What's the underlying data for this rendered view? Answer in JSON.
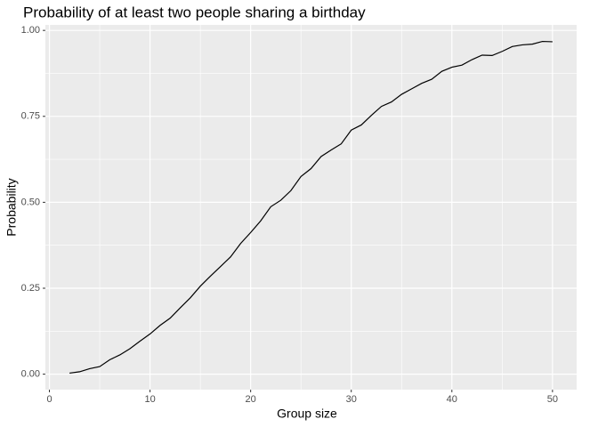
{
  "chart_data": {
    "type": "line",
    "title": "Probability of at least two people sharing a birthday",
    "x_label": "Group size",
    "y_label": "Probability",
    "x": [
      2,
      3,
      4,
      5,
      6,
      7,
      8,
      9,
      10,
      11,
      12,
      13,
      14,
      15,
      16,
      17,
      18,
      19,
      20,
      21,
      22,
      23,
      24,
      25,
      26,
      27,
      28,
      29,
      30,
      31,
      32,
      33,
      34,
      35,
      36,
      37,
      38,
      39,
      40,
      41,
      42,
      43,
      44,
      45,
      46,
      47,
      48,
      49,
      50
    ],
    "series": [
      {
        "color": "#000000",
        "values": [
          0.003,
          0.007,
          0.016,
          0.022,
          0.042,
          0.056,
          0.074,
          0.096,
          0.117,
          0.142,
          0.163,
          0.193,
          0.222,
          0.256,
          0.285,
          0.313,
          0.341,
          0.38,
          0.412,
          0.446,
          0.487,
          0.506,
          0.534,
          0.575,
          0.598,
          0.633,
          0.652,
          0.67,
          0.71,
          0.725,
          0.753,
          0.779,
          0.792,
          0.814,
          0.83,
          0.846,
          0.858,
          0.881,
          0.893,
          0.899,
          0.915,
          0.928,
          0.927,
          0.939,
          0.953,
          0.958,
          0.96,
          0.968,
          0.967
        ]
      }
    ],
    "xlim": [
      -0.4,
      52.4
    ],
    "xticks": [
      0,
      10,
      20,
      30,
      40,
      50
    ],
    "ylim": [
      -0.045,
      1.016
    ],
    "yticks": [
      {
        "value": 0,
        "label": "0.00"
      },
      {
        "value": 0.25,
        "label": "0.25"
      },
      {
        "value": 0.5,
        "label": "0.50"
      },
      {
        "value": 0.75,
        "label": "0.75"
      },
      {
        "value": 1,
        "label": "1.00"
      }
    ],
    "grid": true,
    "minor_grid": true,
    "panel_color": "#ebebeb"
  }
}
